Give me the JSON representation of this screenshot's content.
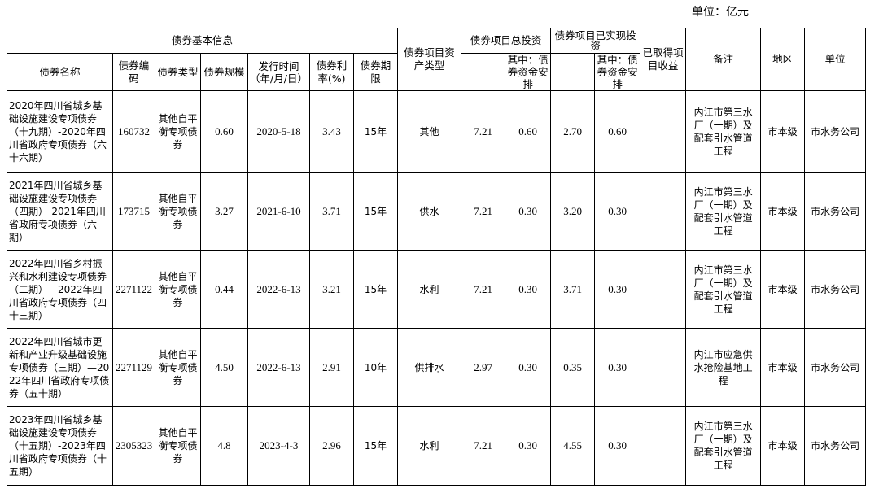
{
  "unit_label": "单位：亿元",
  "header": {
    "group_basic": "债券基本信息",
    "name": "债券名称",
    "code": "债券编码",
    "type": "债券类型",
    "scale": "债券规模",
    "issue_date": "发行时间（年/月/日）",
    "rate": "债券利率(%)",
    "term": "债券期限",
    "asset_type": "债券项目资产类型",
    "total_invest": "债券项目总投资",
    "total_invest_sub": "其中：债券资金安排",
    "realized_invest": "债券项目已实现投资",
    "realized_invest_sub": "其中：债券资金安排",
    "income": "已取得项目收益",
    "remark": "备注",
    "region": "地区",
    "unit": "单位"
  },
  "rows": [
    {
      "name": "2020年四川省城乡基础设施建设专项债券（十九期）-2020年四川省政府专项债券（六十六期）",
      "code": "160732",
      "type": "其他自平衡专项债券",
      "scale": "0.60",
      "issue_date": "2020-5-18",
      "rate": "3.43",
      "term": "15年",
      "asset_type": "其他",
      "total_invest": "7.21",
      "total_bond": "0.60",
      "realized": "2.70",
      "realized_bond": "0.60",
      "income": "",
      "remark": "内江市第三水厂（一期）及配套引水管道工程",
      "region": "市本级",
      "unit": "市水务公司"
    },
    {
      "name": "2021年四川省城乡基础设施建设专项债券（四期）-2021年四川省政府专项债券（六期）",
      "code": "173715",
      "type": "其他自平衡专项债券",
      "scale": "3.27",
      "issue_date": "2021-6-10",
      "rate": "3.71",
      "term": "15年",
      "asset_type": "供水",
      "total_invest": "7.21",
      "total_bond": "0.30",
      "realized": "3.20",
      "realized_bond": "0.30",
      "income": "",
      "remark": "内江市第三水厂（一期）及配套引水管道工程",
      "region": "市本级",
      "unit": "市水务公司"
    },
    {
      "name": "2022年四川省乡村振兴和水利建设专项债券（二期）—2022年四川省政府专项债券（四十三期）",
      "code": "2271122",
      "type": "其他自平衡专项债券",
      "scale": "0.44",
      "issue_date": "2022-6-13",
      "rate": "3.21",
      "term": "15年",
      "asset_type": "水利",
      "total_invest": "7.21",
      "total_bond": "0.30",
      "realized": "3.71",
      "realized_bond": "0.30",
      "income": "",
      "remark": "内江市第三水厂（一期）及配套引水管道工程",
      "region": "市本级",
      "unit": "市水务公司"
    },
    {
      "name": "2022年四川省城市更新和产业升级基础设施专项债券（三期）—2022年四川省政府专项债券（五十期）",
      "code": "2271129",
      "type": "其他自平衡专项债券",
      "scale": "4.50",
      "issue_date": "2022-6-13",
      "rate": "2.91",
      "term": "10年",
      "asset_type": "供排水",
      "total_invest": "2.97",
      "total_bond": "0.30",
      "realized": "0.35",
      "realized_bond": "0.30",
      "income": "",
      "remark": "内江市应急供水抢险基地工程",
      "region": "市本级",
      "unit": "市水务公司"
    },
    {
      "name": "2023年四川省城乡基础设施建设专项债券（十五期）-2023年四川省政府专项债券（十五期）",
      "code": "2305323",
      "type": "其他自平衡专项债券",
      "scale": "4.8",
      "issue_date": "2023-4-3",
      "rate": "2.96",
      "term": "15年",
      "asset_type": "水利",
      "total_invest": "7.21",
      "total_bond": "0.30",
      "realized": "4.55",
      "realized_bond": "0.30",
      "income": "",
      "remark": "内江市第三水厂（一期）及配套引水管道工程",
      "region": "市本级",
      "unit": "市水务公司"
    }
  ]
}
